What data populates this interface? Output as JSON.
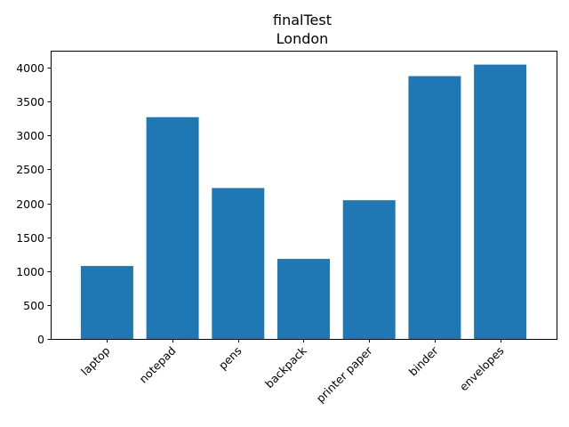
{
  "chart_data": {
    "type": "bar",
    "title": "finalTest",
    "subtitle": "London",
    "xlabel": "",
    "ylabel": "",
    "categories": [
      "laptop",
      "notepad",
      "pens",
      "backpack",
      "printer paper",
      "binder",
      "envelopes"
    ],
    "values": [
      1075,
      3270,
      2225,
      1180,
      2045,
      3875,
      4045
    ],
    "ylim": [
      0,
      4250
    ],
    "yticks": [
      0,
      500,
      1000,
      1500,
      2000,
      2500,
      3000,
      3500,
      4000
    ],
    "grid": false,
    "legend": "none",
    "colors": {
      "bar": "#1f77b4",
      "axis": "#000000",
      "background": "#ffffff"
    }
  }
}
